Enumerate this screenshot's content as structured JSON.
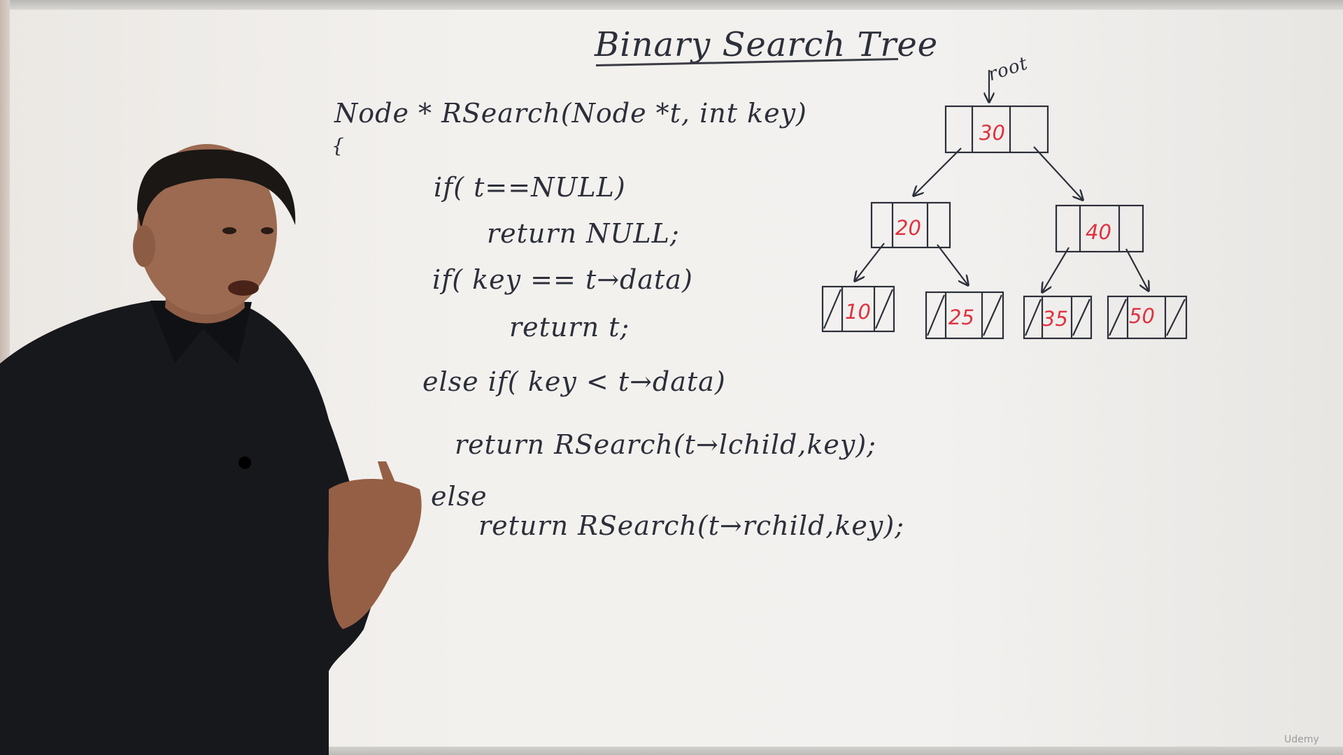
{
  "board": {
    "title": "Binary Search Tree",
    "code_lines": [
      "Node * RSearch(Node *t, int key)",
      "{",
      "if( t==NULL)",
      "return NULL;",
      "if( key == t→data)",
      "return t;",
      "else if( key < t→data)",
      "return RSearch(t→lchild,key);",
      "else",
      "return RSearch(t→rchild,key);"
    ]
  },
  "tree": {
    "root_label": "root",
    "nodes": [
      "30",
      "20",
      "40",
      "10",
      "25",
      "35",
      "50"
    ],
    "value_color": "#e0323f"
  },
  "watermark": "Udemy"
}
